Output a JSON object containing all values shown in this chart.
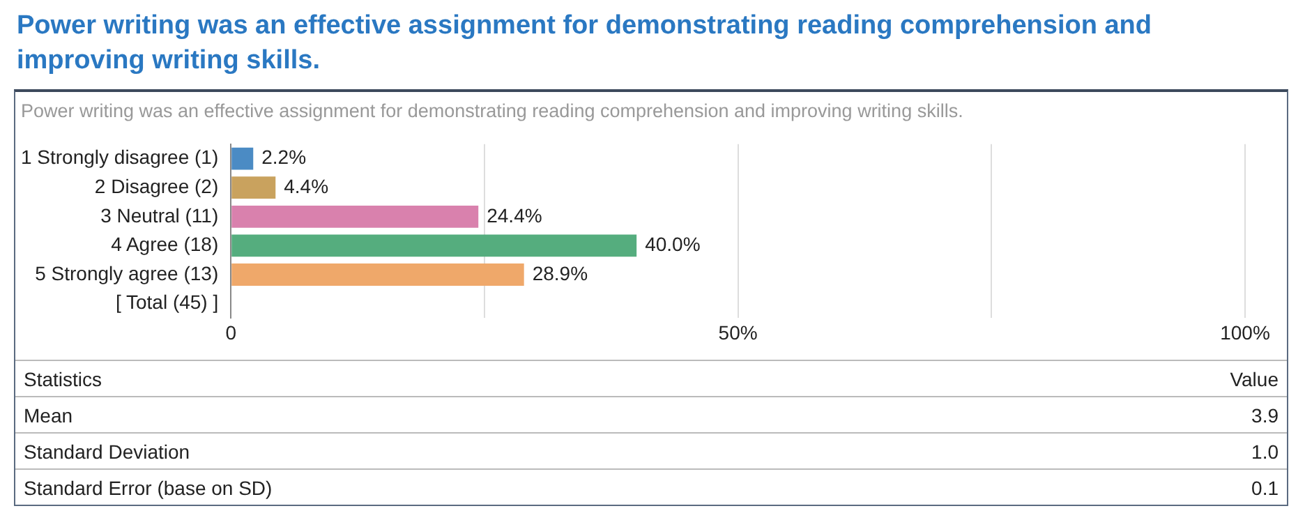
{
  "chart_data": {
    "type": "bar",
    "orientation": "horizontal",
    "title": "Power writing was an effective assignment for demonstrating reading comprehension and improving writing skills.",
    "subtitle": "Power writing was an effective assignment for demonstrating reading comprehension and improving writing skills.",
    "categories": [
      "1 Strongly disagree (1)",
      "2 Disagree (2)",
      "3 Neutral (11)",
      "4 Agree (18)",
      "5 Strongly agree (13)",
      "[ Total (45) ]"
    ],
    "values": [
      2.2,
      4.4,
      24.4,
      40.0,
      28.9,
      null
    ],
    "colors": [
      "#4b8bc4",
      "#c9a25e",
      "#d981ad",
      "#55ad7e",
      "#efa86a",
      "#cccccc"
    ],
    "value_labels": [
      "2.2%",
      "4.4%",
      "24.4%",
      "40.0%",
      "28.9%",
      null
    ],
    "xlim": [
      0,
      100
    ],
    "xticks": [
      0,
      {
        "value": 25,
        "label": null
      },
      {
        "value": 50,
        "label": "50%"
      },
      {
        "value": 75,
        "label": null
      },
      {
        "value": 100,
        "label": "100%"
      }
    ],
    "grid": "x",
    "legend": false,
    "annotations": [
      "Statistics",
      "Value",
      "Mean",
      "3.9",
      "Standard Deviation",
      "1.0",
      "Standard Error (base on SD)",
      "0.1"
    ]
  }
}
